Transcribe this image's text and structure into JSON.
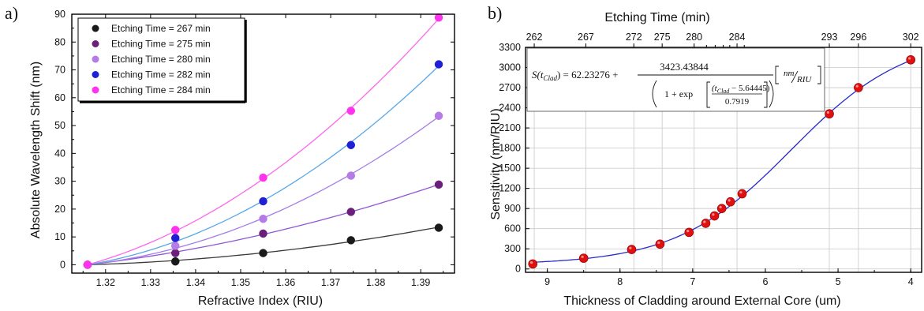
{
  "panel_a": {
    "label": "a)",
    "colors": {
      "Etching Time = 267 min": "#1a1a1a",
      "Etching Time = 275 min": "#6b1f7a",
      "Etching Time = 280 min": "#b57be6",
      "Etching Time = 282 min": "#1f1fd6",
      "Etching Time = 284 min": "#ff33ee"
    },
    "fit_colors": {
      "Etching Time = 267 min": "#3a3a3a",
      "Etching Time = 275 min": "#8f57d6",
      "Etching Time = 280 min": "#a57ce8",
      "Etching Time = 282 min": "#5aa7e8",
      "Etching Time = 284 min": "#ff66ee"
    }
  },
  "panel_b": {
    "label": "b)",
    "top_axis_label": "Etching Time (min)",
    "top_ticks": [
      {
        "etch": "262",
        "thickness": 9.18
      },
      {
        "etch": "267",
        "thickness": 8.47
      },
      {
        "etch": "272",
        "thickness": 7.81
      },
      {
        "etch": "275",
        "thickness": 7.42
      },
      {
        "etch": "280",
        "thickness": 6.98
      },
      {
        "etch": "284",
        "thickness": 6.39
      },
      {
        "etch": "293",
        "thickness": 5.12
      },
      {
        "etch": "296",
        "thickness": 4.72
      },
      {
        "etch": "302",
        "thickness": 4.0
      }
    ],
    "minor_top_ticks": [
      6.81,
      6.69,
      6.58,
      6.49,
      6.29
    ],
    "formula": {
      "lhs": "S(t",
      "lhs_sub": "Clad",
      "lhs_end": ") = 62.23276 +",
      "numerator": "3423.43844",
      "den_prefix": "1 + exp",
      "inner_num": "(t",
      "inner_sub": "Clad",
      "inner_num_end": " − 5.64445)",
      "inner_den": "0.7919",
      "unit_num": "nm",
      "unit_den": "RIU"
    },
    "marker_color": "#e01010",
    "fit_color": "#2a2acc"
  },
  "chart_data": [
    {
      "type": "scatter",
      "title": "",
      "xlabel": "Refractive Index (RIU)",
      "ylabel": "Absolute Wavelength Shift (nm)",
      "xlim": [
        1.3125,
        1.3975
      ],
      "ylim": [
        -3,
        90
      ],
      "xticks": [
        1.32,
        1.33,
        1.34,
        1.35,
        1.36,
        1.37,
        1.38,
        1.39
      ],
      "yticks": [
        0,
        10,
        20,
        30,
        40,
        50,
        60,
        70,
        80,
        90
      ],
      "legend_position": "top-left",
      "x": [
        1.316,
        1.3355,
        1.355,
        1.3745,
        1.394
      ],
      "series": [
        {
          "name": "Etching Time = 267 min",
          "values": [
            0,
            1.2,
            4.2,
            8.8,
            13.3
          ]
        },
        {
          "name": "Etching Time = 275 min",
          "values": [
            0,
            4.2,
            11.2,
            19.0,
            28.8
          ]
        },
        {
          "name": "Etching Time = 280 min",
          "values": [
            0,
            6.8,
            16.5,
            32.0,
            53.5
          ]
        },
        {
          "name": "Etching Time = 282 min",
          "values": [
            0,
            9.6,
            22.8,
            43.0,
            72.0
          ]
        },
        {
          "name": "Etching Time = 284 min",
          "values": [
            0,
            12.5,
            31.3,
            55.3,
            88.8
          ]
        }
      ],
      "grid": false
    },
    {
      "type": "scatter",
      "title": "",
      "xlabel": "Thickness of Cladding around External Core (um)",
      "ylabel": "Sensitivity (nm/RIU)",
      "top_xlabel": "Etching Time (min)",
      "xlim": [
        9.3,
        3.85
      ],
      "ylim": [
        -50,
        3300
      ],
      "xticks": [
        9,
        8,
        7,
        6,
        5,
        4
      ],
      "yticks": [
        0,
        300,
        600,
        900,
        1200,
        1500,
        1800,
        2100,
        2400,
        2700,
        3000,
        3300
      ],
      "grid": true,
      "x": [
        9.2,
        8.5,
        7.84,
        7.45,
        7.05,
        6.82,
        6.7,
        6.6,
        6.48,
        6.32,
        5.12,
        4.72,
        4.0
      ],
      "y": [
        75,
        160,
        290,
        370,
        545,
        680,
        790,
        900,
        1000,
        1120,
        2310,
        2700,
        3115
      ],
      "fit": {
        "A1": 62.23276,
        "A2": 3423.43844,
        "x0": 5.64445,
        "dx": 0.7919
      }
    }
  ]
}
